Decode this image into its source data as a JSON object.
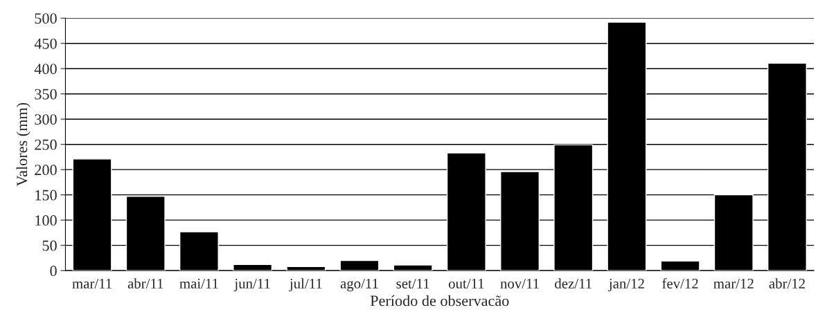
{
  "chart_data": {
    "type": "bar",
    "xlabel": "Período de observacão",
    "ylabel": "Valores (mm)",
    "categories": [
      "mar/11",
      "abr/11",
      "mai/11",
      "jun/11",
      "jul/11",
      "ago/11",
      "set/11",
      "out/11",
      "nov/11",
      "dez/11",
      "jan/12",
      "fev/12",
      "mar/12",
      "abr/12"
    ],
    "values": [
      221,
      147,
      77,
      12,
      8,
      20,
      11,
      233,
      196,
      249,
      492,
      19,
      150,
      411
    ],
    "color": "#000000",
    "ylim": [
      0,
      500
    ],
    "yticks": [
      0,
      50,
      100,
      150,
      200,
      250,
      300,
      350,
      400,
      450,
      500
    ],
    "grid": "y",
    "legend": false
  }
}
